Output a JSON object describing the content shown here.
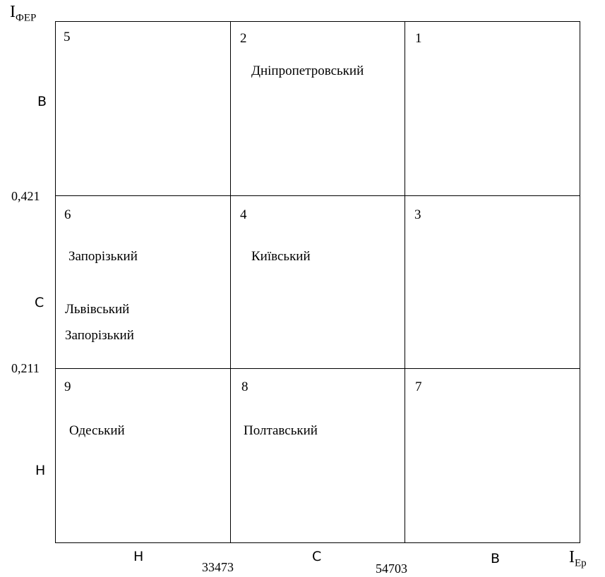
{
  "y_axis": {
    "title_main": "I",
    "title_sub": "ФЕР",
    "levels": [
      "В",
      "С",
      "Н"
    ],
    "thresholds": [
      "0,421",
      "0,211"
    ]
  },
  "x_axis": {
    "title_main": "I",
    "title_sub": "Ep",
    "levels": [
      "Н",
      "С",
      "В"
    ],
    "thresholds": [
      "33473",
      "54703"
    ]
  },
  "cells": [
    {
      "number": "5",
      "regions": []
    },
    {
      "number": "2",
      "regions": [
        "Дніпропетровський"
      ]
    },
    {
      "number": "1",
      "regions": []
    },
    {
      "number": "6",
      "regions": [
        "Запорізький",
        "Львівський",
        "Запорізький"
      ]
    },
    {
      "number": "4",
      "regions": [
        "Київський"
      ]
    },
    {
      "number": "3",
      "regions": []
    },
    {
      "number": "9",
      "regions": [
        "Одеський"
      ]
    },
    {
      "number": "8",
      "regions": [
        "Полтавський"
      ]
    },
    {
      "number": "7",
      "regions": []
    }
  ]
}
